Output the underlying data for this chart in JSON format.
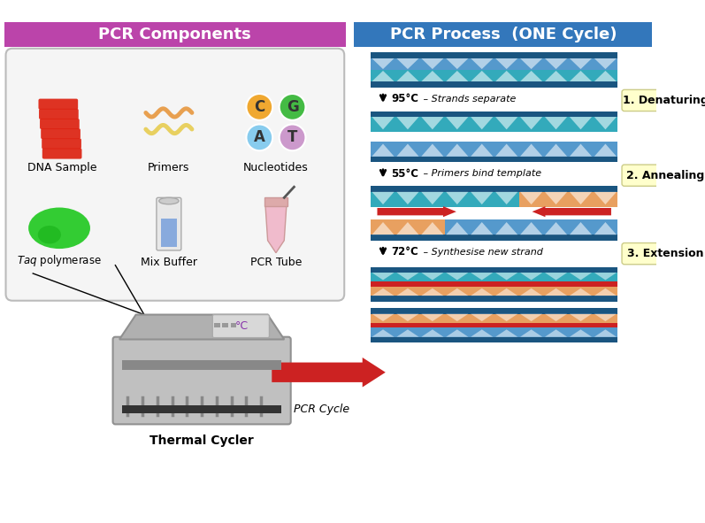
{
  "bg_color": "#ffffff",
  "left_header_color": "#bb44aa",
  "right_header_color": "#3377bb",
  "left_header_text": "PCR Components",
  "right_header_text": "PCR Process  (ONE Cycle)",
  "header_text_color": "#ffffff",
  "header_fontsize": 13,
  "dna_color": "#dd2211",
  "primer1_color": "#e8a050",
  "primer2_color": "#e8d060",
  "nucleotide_C_color": "#f0a830",
  "nucleotide_G_color": "#44bb44",
  "nucleotide_A_color": "#88ccee",
  "nucleotide_T_color": "#cc99cc",
  "enzyme_color": "#33cc33",
  "buffer_color": "#88aadd",
  "tube_color": "#f0bbcc",
  "box_bg": "#f5f5f5",
  "box_edge": "#bbbbbb",
  "rail_color": "#1a5580",
  "strand_teal": "#33aabb",
  "strand_blue": "#5599cc",
  "strand_orange": "#e8a060",
  "strand_red": "#cc2222",
  "arrow_color": "#cc2222",
  "step_label_bg": "#ffffcc",
  "step1_label": "1. Denaturing",
  "step2_label": "2. Annealing",
  "step3_label": "3. Extension",
  "arrow1_bold": "95°C",
  "arrow1_italic": " – Strands separate",
  "arrow2_bold": "55°C",
  "arrow2_italic": " – Primers bind template",
  "arrow3_bold": "72°C",
  "arrow3_italic": " – Synthesise new strand",
  "pcr_cycle_text": "PCR Cycle",
  "thermal_cycler_text": "Thermal Cycler"
}
